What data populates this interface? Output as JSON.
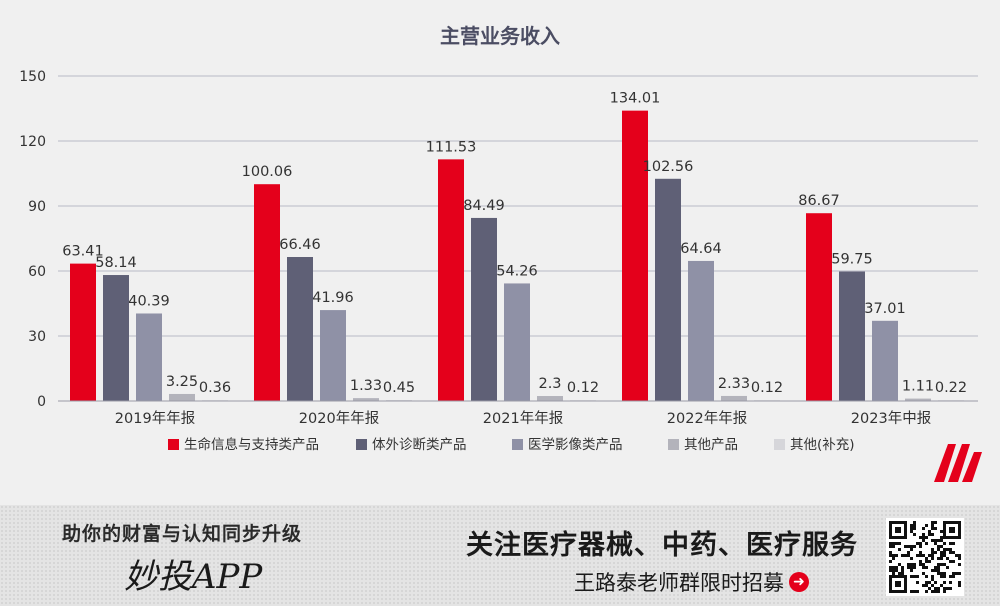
{
  "chart_data": {
    "type": "bar",
    "title": "主营业务收入",
    "categories": [
      "2019年年报",
      "2020年年报",
      "2021年年报",
      "2022年年报",
      "2023年中报"
    ],
    "series": [
      {
        "name": "生命信息与支持类产品",
        "color": "#e4001b",
        "values": [
          63.41,
          100.06,
          111.53,
          134.01,
          86.67
        ],
        "labels": [
          "63.41",
          "100.06",
          "111.53",
          "134.01",
          "86.67"
        ]
      },
      {
        "name": "体外诊断类产品",
        "color": "#5f6076",
        "values": [
          58.14,
          66.46,
          84.49,
          102.56,
          59.75
        ],
        "labels": [
          "58.14",
          "66.46",
          "84.49",
          "102.56",
          "59.75"
        ]
      },
      {
        "name": "医学影像类产品",
        "color": "#8f91a6",
        "values": [
          40.39,
          41.96,
          54.26,
          64.64,
          37.01
        ],
        "labels": [
          "40.39",
          "41.96",
          "54.26",
          "64.64",
          "37.01"
        ]
      },
      {
        "name": "其他产品",
        "color": "#b3b3bb",
        "values": [
          3.25,
          1.33,
          2.3,
          2.33,
          1.11
        ],
        "labels": [
          "3.25",
          "1.33",
          "2.3",
          "2.33",
          "1.11"
        ]
      },
      {
        "name": "其他(补充)",
        "color": "#d6d6da",
        "values": [
          0.36,
          0.45,
          0.12,
          0.12,
          0.22
        ],
        "labels": [
          "0.36",
          "0.45",
          "0.12",
          "0.12",
          "0.22"
        ]
      }
    ],
    "ylim": [
      0,
      150
    ],
    "yticks": [
      0,
      30,
      60,
      90,
      120,
      150
    ],
    "grid": true,
    "legend_position": "bottom"
  },
  "footer": {
    "slogan": "助你的财富与认知同步升级",
    "app_name": "妙投APP",
    "headline": "关注医疗器械、中药、医疗服务",
    "recruit": "王路泰老师群限时招募"
  },
  "icons": {
    "logo": "miaotou-logo-icon",
    "arrow": "arrow-right-icon",
    "qr": "qr-code-icon"
  }
}
